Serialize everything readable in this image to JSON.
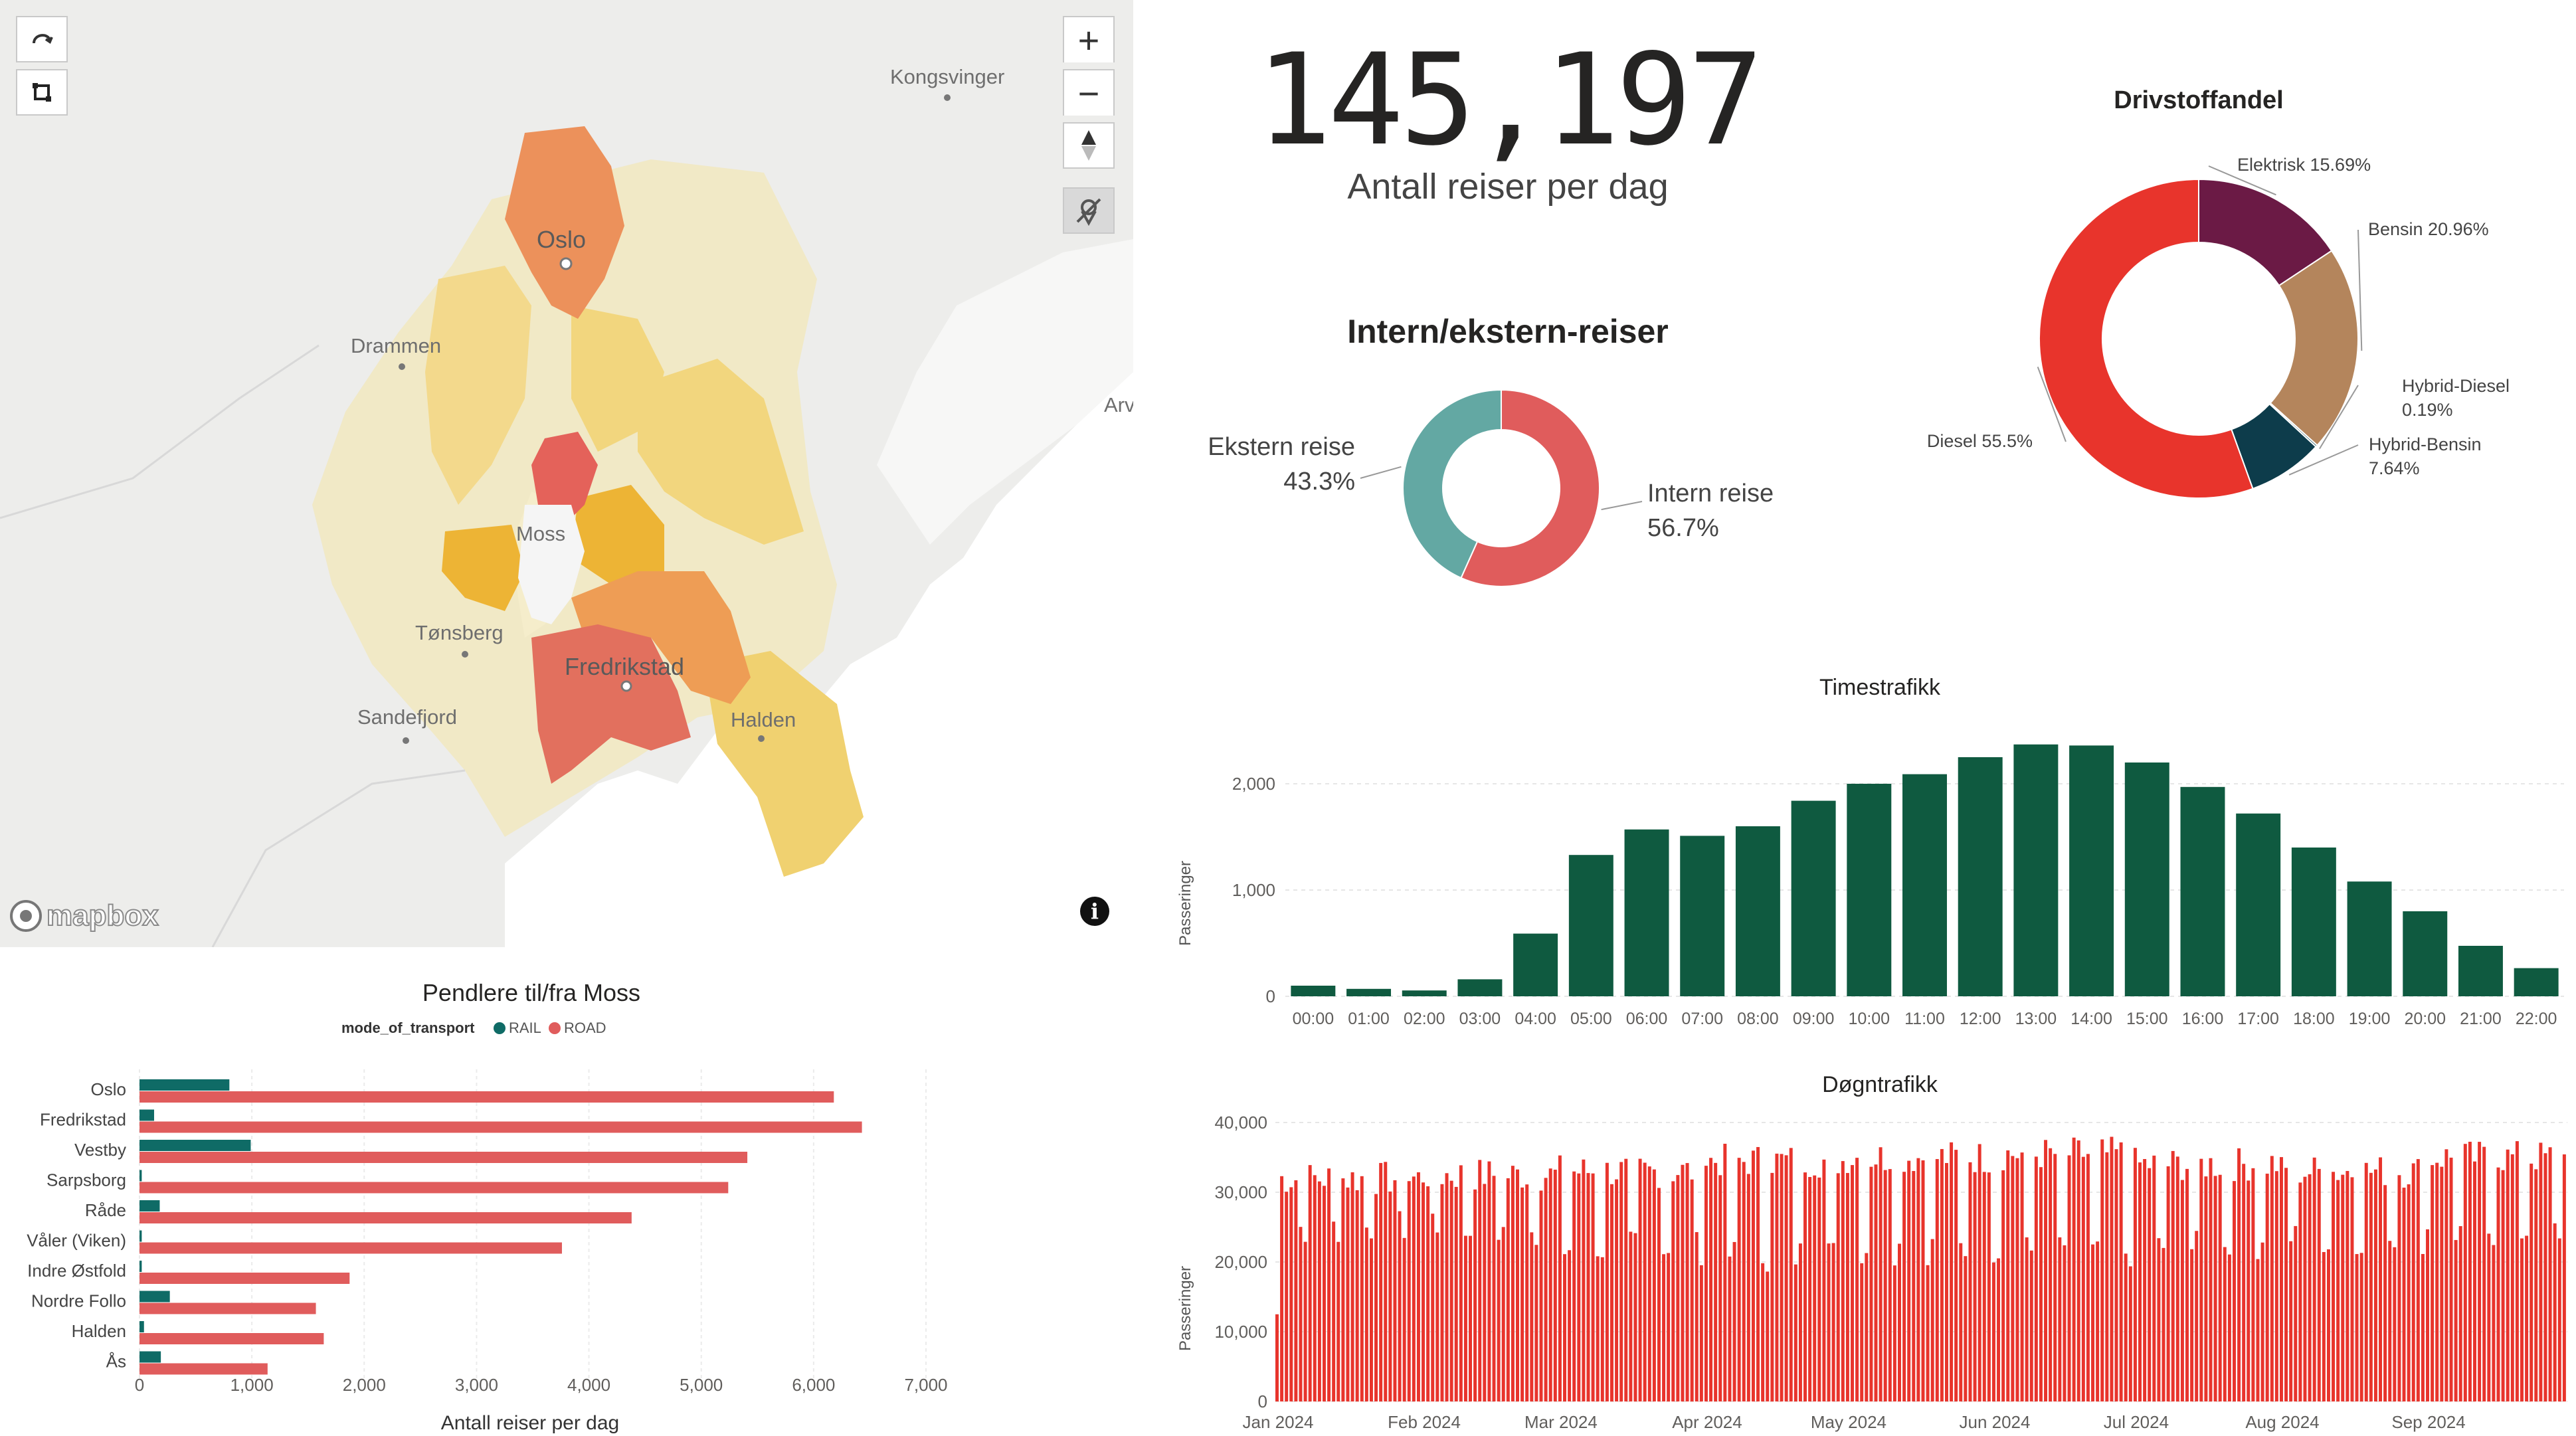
{
  "map": {
    "places": [
      "Kongsvinger",
      "Oslo",
      "Drammen",
      "Moss",
      "Tønsberg",
      "Fredrikstad",
      "Sandefjord",
      "Halden",
      "Arv"
    ],
    "logo": "mapbox",
    "controls": {
      "rotate_icon": "rotate-icon",
      "select_icon": "rectangle-select-icon",
      "zoom_in": "+",
      "zoom_out": "−",
      "compass_icon": "compass-icon",
      "location_icon": "location-off-icon",
      "info_icon": "info-icon"
    },
    "colors": {
      "water": "#ffffff",
      "land": "#ededeb",
      "light_region": "#f1e7b9",
      "mid_region": "#f0d170",
      "orange_region": "#ee9d55",
      "red_region": "#e4625a"
    }
  },
  "kpi": {
    "value": "145,197",
    "label": "Antall reiser per dag"
  },
  "intern_ekstern": {
    "title": "Intern/ekstern-reiser",
    "chart_data": {
      "type": "pie",
      "title": "Intern/ekstern-reiser",
      "slices": [
        {
          "name": "Intern reise",
          "value": 56.7,
          "label": "56.7%",
          "color": "#e05c5c"
        },
        {
          "name": "Ekstern reise",
          "value": 43.3,
          "label": "43.3%",
          "color": "#63a8a3"
        }
      ]
    }
  },
  "drivstoff": {
    "title": "Drivstoffandel",
    "chart_data": {
      "type": "pie",
      "title": "Drivstoffandel",
      "slices": [
        {
          "name": "Elektrisk",
          "value": 15.69,
          "label": "15.69%",
          "color": "#6b1a45"
        },
        {
          "name": "Bensin",
          "value": 20.96,
          "label": "20.96%",
          "color": "#b4855c"
        },
        {
          "name": "Hybrid-Diesel",
          "value": 0.19,
          "label": "0.19%",
          "color": "#0a4d57"
        },
        {
          "name": "Hybrid-Bensin",
          "value": 7.64,
          "label": "7.64%",
          "color": "#0d3c4b"
        },
        {
          "name": "Diesel",
          "value": 55.5,
          "label": "55.5%",
          "color": "#e8342c"
        }
      ]
    }
  },
  "timestrafikk": {
    "title": "Timestrafikk",
    "chart_data": {
      "type": "bar",
      "title": "Timestrafikk",
      "ylabel": "Passeringer",
      "xlabel": "",
      "categories": [
        "00:00",
        "01:00",
        "02:00",
        "03:00",
        "04:00",
        "05:00",
        "06:00",
        "07:00",
        "08:00",
        "09:00",
        "10:00",
        "11:00",
        "12:00",
        "13:00",
        "14:00",
        "15:00",
        "16:00",
        "17:00",
        "18:00",
        "19:00",
        "20:00",
        "21:00",
        "22:00"
      ],
      "values": [
        100,
        70,
        55,
        160,
        590,
        1330,
        1570,
        1510,
        1600,
        1840,
        2000,
        2090,
        2250,
        2370,
        2360,
        2200,
        1970,
        1720,
        1400,
        1080,
        800,
        475,
        265
      ],
      "yticks": [
        0,
        1000,
        2000
      ],
      "ytick_labels": [
        "0",
        "1,000",
        "2,000"
      ],
      "ylim": [
        0,
        2500
      ],
      "color": "#0f5a40"
    }
  },
  "dogntrafikk": {
    "title": "Døgntrafikk",
    "chart_data": {
      "type": "bar",
      "title": "Døgntrafikk",
      "ylabel": "Passeringer",
      "xlabel": "",
      "x_start": "2024-01-01",
      "x_end": "2024-09-30",
      "month_labels": [
        "Jan 2024",
        "Feb 2024",
        "Mar 2024",
        "Apr 2024",
        "May 2024",
        "Jun 2024",
        "Jul 2024",
        "Aug 2024",
        "Sep 2024"
      ],
      "yticks": [
        0,
        10000,
        20000,
        30000,
        40000
      ],
      "ytick_labels": [
        "0",
        "10,000",
        "20,000",
        "30,000",
        "40,000"
      ],
      "ylim": [
        0,
        40000
      ],
      "color": "#e8342c",
      "weekday_level": [
        32000,
        32500,
        33000,
        34500,
        35000,
        35500,
        34000,
        33000,
        35000
      ],
      "weekend_level": [
        25000,
        24500,
        22000,
        21000,
        22000,
        21500,
        22000,
        23500,
        24500
      ]
    }
  },
  "pendlere": {
    "title": "Pendlere til/fra Moss",
    "chart_data": {
      "type": "bar",
      "orientation": "horizontal",
      "title": "Pendlere til/fra Moss",
      "xlabel": "Antall reiser per dag",
      "legend_title": "mode_of_transport",
      "legend_placement": "top-left",
      "categories": [
        "Oslo",
        "Fredrikstad",
        "Vestby",
        "Sarpsborg",
        "Råde",
        "Våler (Viken)",
        "Indre Østfold",
        "Nordre Follo",
        "Halden",
        "Ås"
      ],
      "series": [
        {
          "name": "RAIL",
          "color": "#0f6b66",
          "values": [
            800,
            130,
            990,
            20,
            180,
            20,
            20,
            270,
            40,
            190
          ]
        },
        {
          "name": "ROAD",
          "color": "#e05c5c",
          "values": [
            6180,
            6430,
            5410,
            5240,
            4380,
            3760,
            1870,
            1570,
            1640,
            1140
          ]
        }
      ],
      "xticks": [
        0,
        1000,
        2000,
        3000,
        4000,
        5000,
        6000,
        7000
      ],
      "xtick_labels": [
        "0",
        "1,000",
        "2,000",
        "3,000",
        "4,000",
        "5,000",
        "6,000",
        "7,000"
      ],
      "xlim": [
        0,
        7000
      ]
    }
  }
}
